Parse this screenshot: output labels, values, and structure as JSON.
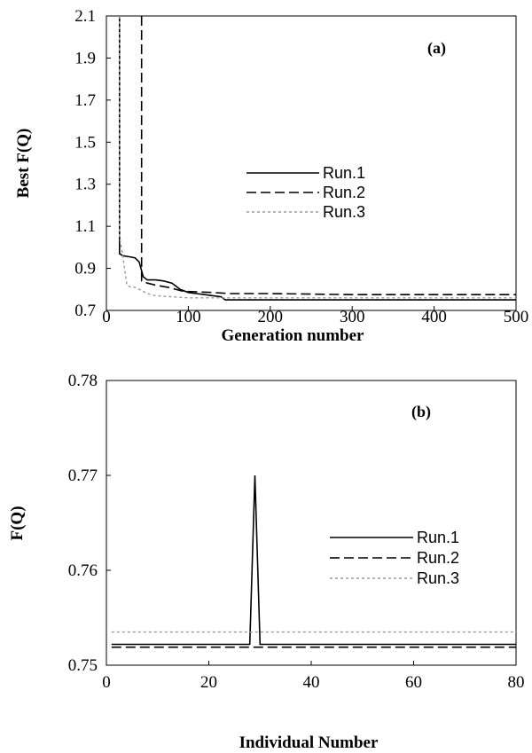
{
  "chart_data": [
    {
      "type": "line",
      "panel_label": "(a)",
      "xlabel": "Generation number",
      "ylabel": "Best F(Q)",
      "xlim": [
        0,
        500
      ],
      "ylim": [
        0.7,
        2.1
      ],
      "xticks": [
        "0",
        "100",
        "200",
        "300",
        "400",
        "500"
      ],
      "yticks": [
        "0.7",
        "0.9",
        "1.1",
        "1.3",
        "1.5",
        "1.7",
        "1.9",
        "2.1"
      ],
      "grid": false,
      "legend_position": "center-right",
      "series": [
        {
          "name": "Run.1",
          "color": "#000000",
          "dash": "solid",
          "x": [
            16,
            16,
            20,
            28,
            35,
            40,
            45,
            50,
            60,
            70,
            80,
            90,
            100,
            110,
            120,
            130,
            140,
            145,
            150,
            200,
            300,
            400,
            500
          ],
          "y": [
            2.1,
            0.97,
            0.96,
            0.955,
            0.95,
            0.93,
            0.86,
            0.845,
            0.845,
            0.84,
            0.83,
            0.8,
            0.785,
            0.78,
            0.775,
            0.77,
            0.765,
            0.75,
            0.75,
            0.75,
            0.75,
            0.75,
            0.75
          ]
        },
        {
          "name": "Run.2",
          "color": "#000000",
          "dash": "dashed",
          "x": [
            43,
            43,
            50,
            60,
            75,
            95,
            100,
            130,
            150,
            200,
            300,
            400,
            500
          ],
          "y": [
            2.1,
            0.84,
            0.83,
            0.82,
            0.81,
            0.79,
            0.79,
            0.785,
            0.78,
            0.78,
            0.775,
            0.775,
            0.775
          ]
        },
        {
          "name": "Run.3",
          "color": "#999999",
          "dash": "dotted",
          "x": [
            16,
            16,
            20,
            25,
            30,
            35,
            40,
            50,
            60,
            80,
            100,
            150,
            200,
            300,
            400,
            500
          ],
          "y": [
            2.1,
            1.05,
            0.96,
            0.82,
            0.81,
            0.81,
            0.8,
            0.78,
            0.77,
            0.765,
            0.76,
            0.76,
            0.76,
            0.76,
            0.76,
            0.76
          ]
        }
      ]
    },
    {
      "type": "line",
      "panel_label": "(b)",
      "xlabel": "Individual Number",
      "ylabel": "F(Q)",
      "xlim": [
        0,
        80
      ],
      "ylim": [
        0.75,
        0.78
      ],
      "xticks": [
        "0",
        "20",
        "40",
        "60",
        "80"
      ],
      "yticks": [
        "0.75",
        "0.76",
        "0.77",
        "0.78"
      ],
      "grid": false,
      "legend_position": "center-right",
      "series": [
        {
          "name": "Run.1",
          "color": "#000000",
          "dash": "solid",
          "x": [
            1,
            28,
            29,
            30,
            80
          ],
          "y": [
            0.7522,
            0.7522,
            0.77,
            0.7522,
            0.7522
          ]
        },
        {
          "name": "Run.2",
          "color": "#000000",
          "dash": "dashed",
          "x": [
            1,
            80
          ],
          "y": [
            0.7519,
            0.7519
          ]
        },
        {
          "name": "Run.3",
          "color": "#999999",
          "dash": "dotted",
          "x": [
            1,
            80
          ],
          "y": [
            0.7535,
            0.7535
          ]
        }
      ]
    }
  ]
}
